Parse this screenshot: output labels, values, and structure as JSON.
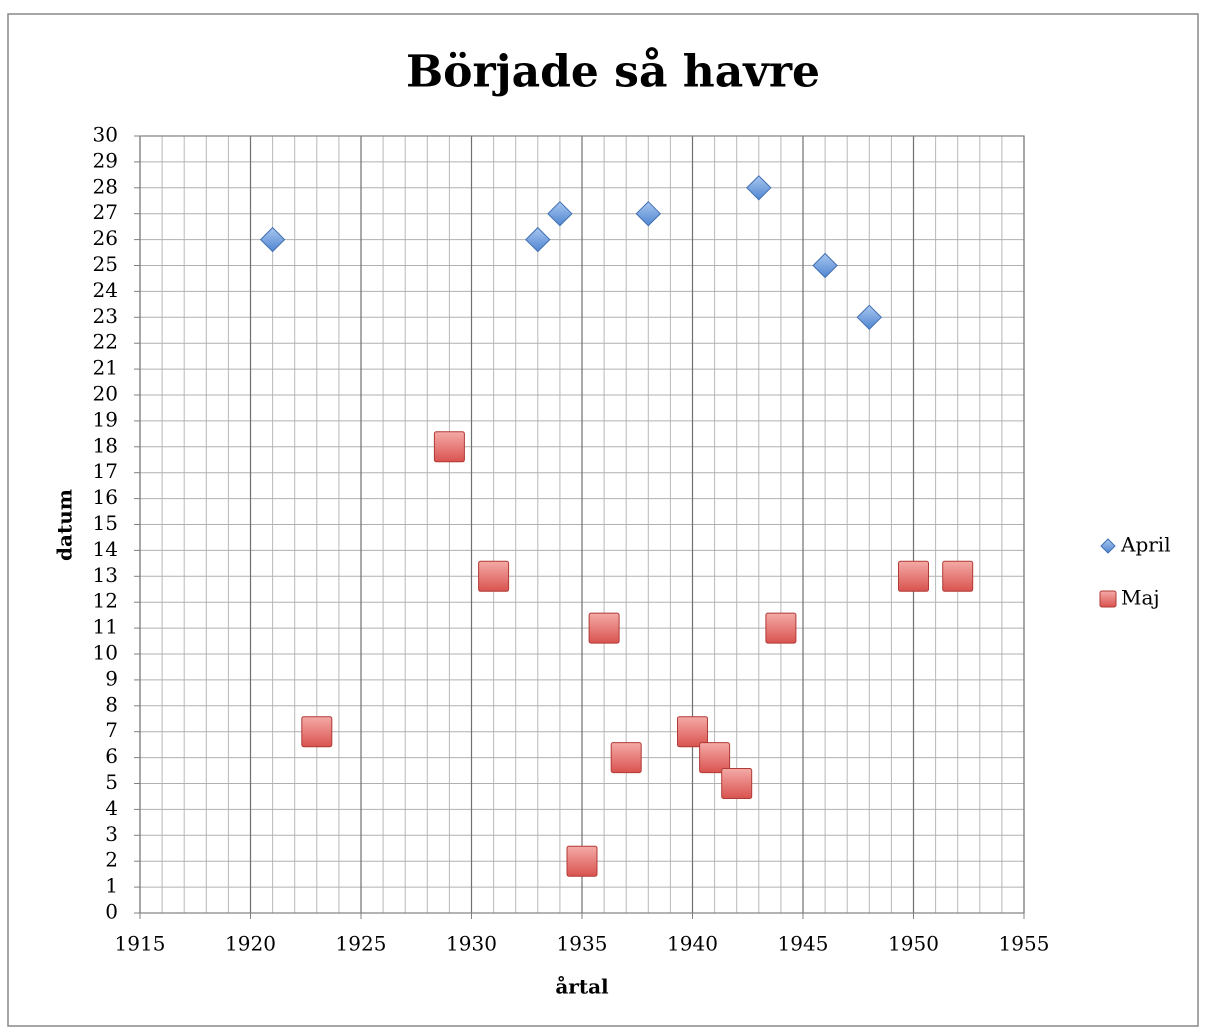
{
  "chart_data": {
    "type": "scatter",
    "title": "Började så havre",
    "xlabel": "årtal",
    "ylabel": "datum",
    "series": [
      {
        "name": "April",
        "color": "#5b8fd4",
        "marker": "diamond",
        "x": [
          1921,
          1933,
          1934,
          1938,
          1943,
          1946,
          1948
        ],
        "values": [
          26,
          26,
          27,
          27,
          28,
          25,
          23
        ]
      },
      {
        "name": "Maj",
        "color": "#e0605c",
        "marker": "square",
        "x": [
          1923,
          1929,
          1931,
          1935,
          1936,
          1937,
          1940,
          1941,
          1942,
          1944,
          1950,
          1952
        ],
        "values": [
          7,
          18,
          13,
          2,
          11,
          6,
          7,
          6,
          5,
          11,
          13,
          13
        ]
      }
    ],
    "xlim": [
      1915,
      1955
    ],
    "xticks": [
      1915,
      1920,
      1925,
      1930,
      1935,
      1940,
      1945,
      1950,
      1955
    ],
    "ylim": [
      0,
      30
    ],
    "yticks": [
      0,
      1,
      2,
      3,
      4,
      5,
      6,
      7,
      8,
      9,
      10,
      11,
      12,
      13,
      14,
      15,
      16,
      17,
      18,
      19,
      20,
      21,
      22,
      23,
      24,
      25,
      26,
      27,
      28,
      29,
      30
    ],
    "grid": true,
    "minor_grid": true,
    "legend": "right"
  }
}
